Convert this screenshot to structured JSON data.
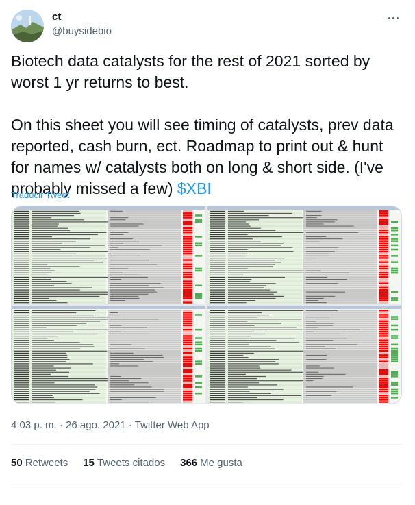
{
  "author": {
    "name": "ct",
    "handle": "@buysidebio"
  },
  "tweet": {
    "text_part1": "Biotech data catalysts for the rest of 2021 sorted by worst 1 yr returns to best.\n\nOn this sheet you will see timing of catalysts, prev data reported, cash burn, ect. Roadmap to print out & hunt for names w/ catalysts both on long & short side. (I've probably missed a few) ",
    "cashtag": "$XBI",
    "translate_label": "Traducir Tweet"
  },
  "meta": {
    "time": "4:03 p. m.",
    "sep1": " · ",
    "date": "26 ago. 2021",
    "sep2": " · ",
    "source": "Twitter Web App"
  },
  "stats": {
    "retweets_count": "50",
    "retweets_label": "Retweets",
    "quotes_count": "15",
    "quotes_label": "Tweets citados",
    "likes_count": "366",
    "likes_label": "Me gusta"
  },
  "colors": {
    "link": "#1d9bf0",
    "muted": "#536471",
    "sheet_green": "#d9ead3",
    "sheet_red": "#ff0000",
    "sheet_gray": "#c8c8c8"
  },
  "icons": {
    "more": "more-dots-icon"
  }
}
